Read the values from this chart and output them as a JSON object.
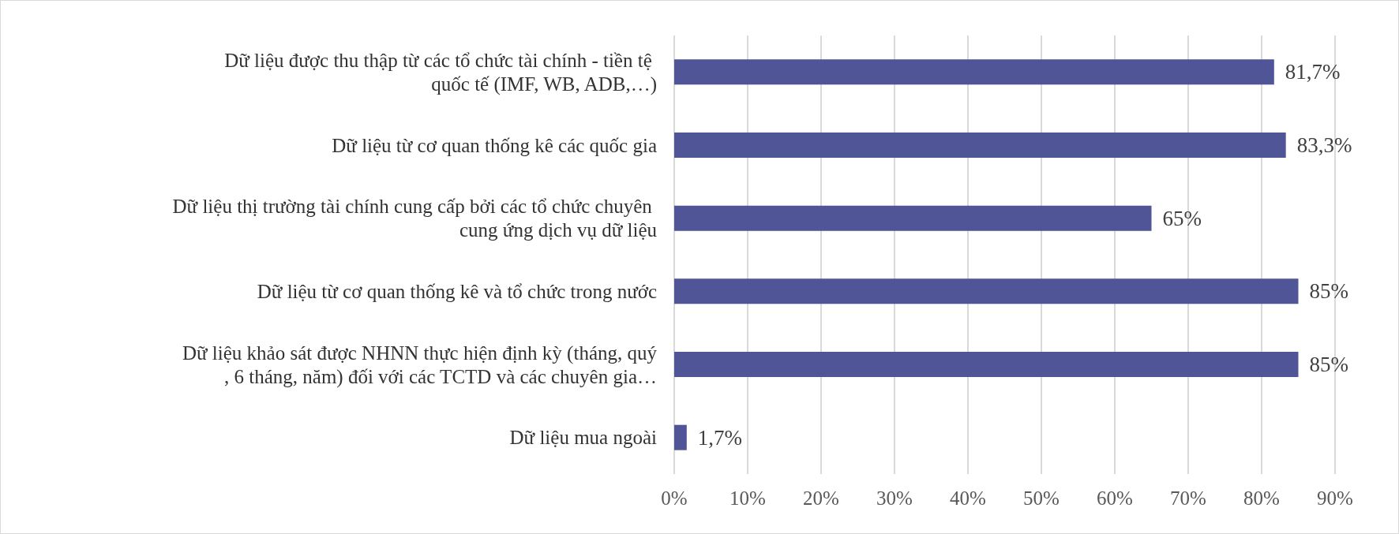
{
  "chart_data": {
    "type": "bar",
    "orientation": "horizontal",
    "categories": [
      "Dữ liệu được thu thập từ các tổ chức tài chính - tiền tệ quốc tế (IMF, WB, ADB,…)",
      "Dữ liệu từ cơ quan thống kê các quốc gia",
      "Dữ liệu thị trường tài chính cung cấp bởi các tổ chức chuyên cung ứng dịch vụ dữ liệu",
      "Dữ liệu từ cơ quan thống kê và tổ chức trong nước",
      "Dữ liệu khảo sát được NHNN thực hiện định kỳ (tháng, quý, 6 tháng, năm) đối với các TCTD và các chuyên gia…",
      "Dữ liệu mua ngoài"
    ],
    "values": [
      81.7,
      83.3,
      65,
      85,
      85,
      1.7
    ],
    "value_labels": [
      "81,7%",
      "83,3%",
      "65%",
      "85%",
      "85%",
      "1,7%"
    ],
    "color": "#4f5597",
    "xlim": [
      0,
      90
    ],
    "xticks": [
      {
        "value": 0,
        "label": "0%"
      },
      {
        "value": 10,
        "label": "10%"
      },
      {
        "value": 20,
        "label": "20%"
      },
      {
        "value": 30,
        "label": "30%"
      },
      {
        "value": 40,
        "label": "40%"
      },
      {
        "value": 50,
        "label": "50%"
      },
      {
        "value": 60,
        "label": "60%"
      },
      {
        "value": 70,
        "label": "70%"
      },
      {
        "value": 80,
        "label": "80%"
      },
      {
        "value": 90,
        "label": "90%"
      }
    ],
    "grid": "x"
  }
}
